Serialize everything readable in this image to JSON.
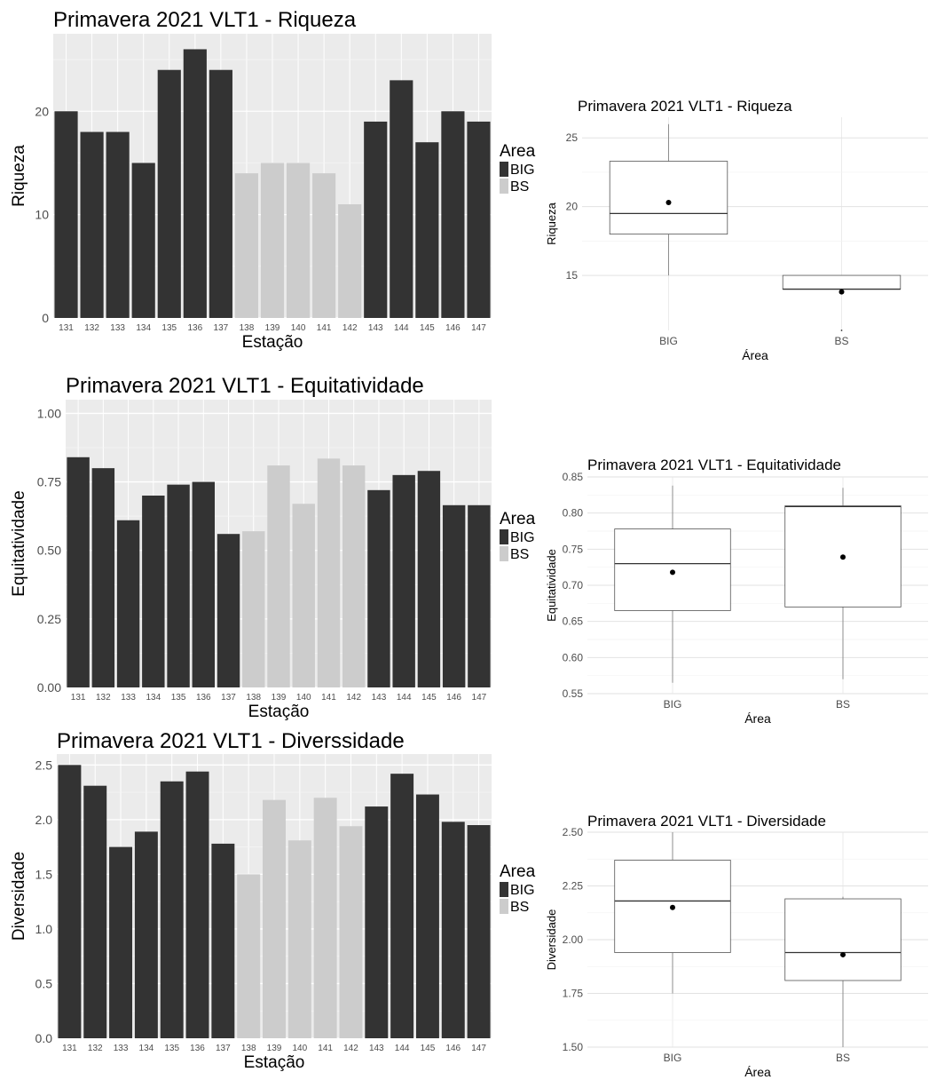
{
  "colors": {
    "BIG": "#333333",
    "BS": "#cccccc",
    "panel_bg": "#ebebeb",
    "grid": "#ffffff"
  },
  "chart_data": [
    {
      "type": "bar",
      "title": "Primavera 2021 VLT1 - Riqueza",
      "xlabel": "Estação",
      "ylabel": "Riqueza",
      "ylim": [
        0,
        27.5
      ],
      "yticks": [
        "0",
        "10",
        "20"
      ],
      "grid": true,
      "legend": {
        "title": "Area",
        "entries": [
          "BIG",
          "BS"
        ],
        "position": "right"
      },
      "categories": [
        "131",
        "132",
        "133",
        "134",
        "135",
        "136",
        "137",
        "138",
        "139",
        "140",
        "141",
        "142",
        "143",
        "144",
        "145",
        "146",
        "147"
      ],
      "groups": [
        "BIG",
        "BIG",
        "BIG",
        "BIG",
        "BIG",
        "BIG",
        "BIG",
        "BS",
        "BS",
        "BS",
        "BS",
        "BS",
        "BIG",
        "BIG",
        "BIG",
        "BIG",
        "BIG"
      ],
      "values": [
        20,
        18,
        18,
        15,
        24,
        26,
        24,
        14,
        15,
        15,
        14,
        11,
        19,
        23,
        17,
        20,
        19
      ]
    },
    {
      "type": "bar",
      "title": "Primavera 2021 VLT1 - Equitatividade",
      "xlabel": "Estação",
      "ylabel": "Equitatividade",
      "ylim": [
        0,
        1.05
      ],
      "yticks": [
        "0.00",
        "0.25",
        "0.50",
        "0.75",
        "1.00"
      ],
      "grid": true,
      "legend": {
        "title": "Area",
        "entries": [
          "BIG",
          "BS"
        ],
        "position": "right"
      },
      "categories": [
        "131",
        "132",
        "133",
        "134",
        "135",
        "136",
        "137",
        "138",
        "139",
        "140",
        "141",
        "142",
        "143",
        "144",
        "145",
        "146",
        "147"
      ],
      "groups": [
        "BIG",
        "BIG",
        "BIG",
        "BIG",
        "BIG",
        "BIG",
        "BIG",
        "BS",
        "BS",
        "BS",
        "BS",
        "BS",
        "BIG",
        "BIG",
        "BIG",
        "BIG",
        "BIG"
      ],
      "values": [
        0.84,
        0.8,
        0.61,
        0.7,
        0.74,
        0.75,
        0.56,
        0.57,
        0.81,
        0.67,
        0.835,
        0.81,
        0.72,
        0.775,
        0.79,
        0.665,
        0.665
      ]
    },
    {
      "type": "bar",
      "title": "Primavera 2021 VLT1 - Diverssidade",
      "xlabel": "Estação",
      "ylabel": "Diversidade",
      "ylim": [
        0,
        2.6
      ],
      "yticks": [
        "0.0",
        "0.5",
        "1.0",
        "1.5",
        "2.0",
        "2.5"
      ],
      "grid": true,
      "legend": {
        "title": "Area",
        "entries": [
          "BIG",
          "BS"
        ],
        "position": "right"
      },
      "categories": [
        "131",
        "132",
        "133",
        "134",
        "135",
        "136",
        "137",
        "138",
        "139",
        "140",
        "141",
        "142",
        "143",
        "144",
        "145",
        "146",
        "147"
      ],
      "groups": [
        "BIG",
        "BIG",
        "BIG",
        "BIG",
        "BIG",
        "BIG",
        "BIG",
        "BS",
        "BS",
        "BS",
        "BS",
        "BS",
        "BIG",
        "BIG",
        "BIG",
        "BIG",
        "BIG"
      ],
      "values": [
        2.5,
        2.31,
        1.75,
        1.89,
        2.35,
        2.44,
        1.78,
        1.5,
        2.18,
        1.81,
        2.2,
        1.94,
        2.12,
        2.42,
        2.23,
        1.98,
        1.95
      ]
    },
    {
      "type": "box",
      "title": "Primavera 2021 VLT1 - Riqueza",
      "xlabel": "Área",
      "ylabel": "Riqueza",
      "ylim": [
        11,
        26.5
      ],
      "yticks": [
        "15",
        "20",
        "25"
      ],
      "grid": true,
      "categories": [
        "BIG",
        "BS"
      ],
      "boxes": [
        {
          "min": 15,
          "q1": 18,
          "median": 19.5,
          "q3": 23.3,
          "max": 26,
          "mean": 20.3
        },
        {
          "min": 14,
          "q1": 14,
          "median": 14,
          "q3": 15,
          "max": 15,
          "mean": 13.8,
          "outliers": [
            11
          ]
        }
      ]
    },
    {
      "type": "box",
      "title": "Primavera 2021 VLT1 - Equitatividade",
      "xlabel": "Área",
      "ylabel": "Equitatividade",
      "ylim": [
        0.55,
        0.85
      ],
      "yticks": [
        "0.55",
        "0.60",
        "0.65",
        "0.70",
        "0.75",
        "0.80",
        "0.85"
      ],
      "grid": true,
      "categories": [
        "BIG",
        "BS"
      ],
      "boxes": [
        {
          "min": 0.565,
          "q1": 0.665,
          "median": 0.73,
          "q3": 0.778,
          "max": 0.838,
          "mean": 0.718
        },
        {
          "min": 0.57,
          "q1": 0.67,
          "median": 0.809,
          "q3": 0.81,
          "max": 0.835,
          "mean": 0.739
        }
      ]
    },
    {
      "type": "box",
      "title": "Primavera 2021 VLT1 - Diversidade",
      "xlabel": "Área",
      "ylabel": "Diversidade",
      "ylim": [
        1.5,
        2.5
      ],
      "yticks": [
        "1.50",
        "1.75",
        "2.00",
        "2.25",
        "2.50"
      ],
      "grid": true,
      "categories": [
        "BIG",
        "BS"
      ],
      "boxes": [
        {
          "min": 1.75,
          "q1": 1.94,
          "median": 2.18,
          "q3": 2.37,
          "max": 2.5,
          "mean": 2.15
        },
        {
          "min": 1.5,
          "q1": 1.81,
          "median": 1.94,
          "q3": 2.19,
          "max": 2.2,
          "mean": 1.93
        }
      ]
    }
  ]
}
